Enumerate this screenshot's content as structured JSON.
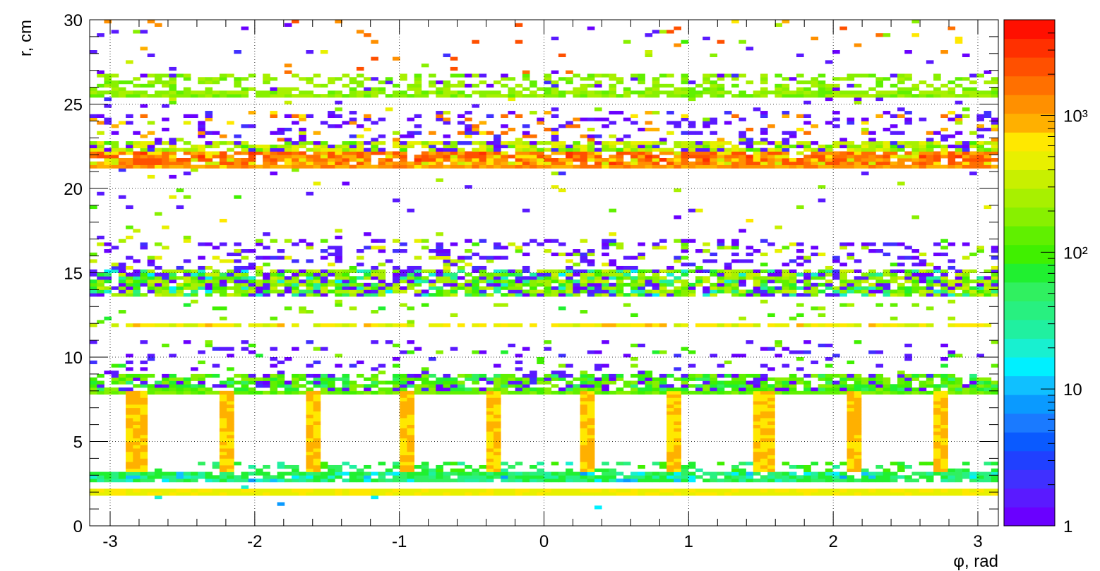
{
  "chart_data": {
    "type": "heatmap",
    "title": "",
    "xlabel": "φ, rad",
    "ylabel": "r, cm",
    "xlim": [
      -3.1416,
      3.1416
    ],
    "ylim": [
      0,
      30
    ],
    "x_ticks": [
      -3,
      -2,
      -1,
      0,
      1,
      2,
      3
    ],
    "y_ticks": [
      0,
      5,
      10,
      15,
      20,
      25,
      30
    ],
    "grid": true,
    "z_scale": "log",
    "z_range": [
      1,
      5000
    ],
    "colorbar_ticks": [
      {
        "value": 1,
        "label": "1"
      },
      {
        "value": 10,
        "label": "10"
      },
      {
        "value": 100,
        "label": "10²"
      },
      {
        "value": 1000,
        "label": "10³"
      }
    ],
    "palette": [
      "#6a00ff",
      "#5a1aff",
      "#4030ff",
      "#2040ff",
      "#0a5aff",
      "#1a7aff",
      "#0a9aff",
      "#10c0ff",
      "#00f0ff",
      "#18f0d0",
      "#20f0a0",
      "#28f080",
      "#30f060",
      "#20f030",
      "#40f000",
      "#60f000",
      "#88f000",
      "#a8f000",
      "#c8f000",
      "#e8f000",
      "#ffe800",
      "#ffb000",
      "#ff9000",
      "#ff7000",
      "#ff5000",
      "#ff3000",
      "#ff1000"
    ],
    "bands": [
      {
        "name": "band-r2",
        "r": [
          1.8,
          2.2
        ],
        "level": "~400-600",
        "note": "yellow-green continuous ring"
      },
      {
        "name": "band-r3",
        "r": [
          2.6,
          3.3
        ],
        "level": "~15-60",
        "note": "cyan/green ring with speckle"
      },
      {
        "name": "spokes",
        "r": [
          3.3,
          8.0
        ],
        "phi_centers": [
          -2.82,
          -2.2,
          -1.58,
          -0.96,
          -0.34,
          0.28,
          0.9,
          1.52,
          2.14,
          2.76
        ],
        "level": "~700-900"
      },
      {
        "name": "band-r8",
        "r": [
          7.8,
          9.0
        ],
        "level": "~80-200"
      },
      {
        "name": "band-r12",
        "r": [
          11.7,
          12.1
        ],
        "level": "~300-800"
      },
      {
        "name": "band-r14",
        "r": [
          13.5,
          15.5
        ],
        "level": "~50-200"
      },
      {
        "name": "band-r21",
        "r": [
          21.2,
          21.6
        ],
        "level": "~700-1500"
      },
      {
        "name": "band-r22",
        "r": [
          21.6,
          22.9
        ],
        "level": "~100-2500"
      },
      {
        "name": "band-r26",
        "r": [
          25.5,
          26.0
        ],
        "level": "~100-300"
      }
    ]
  }
}
